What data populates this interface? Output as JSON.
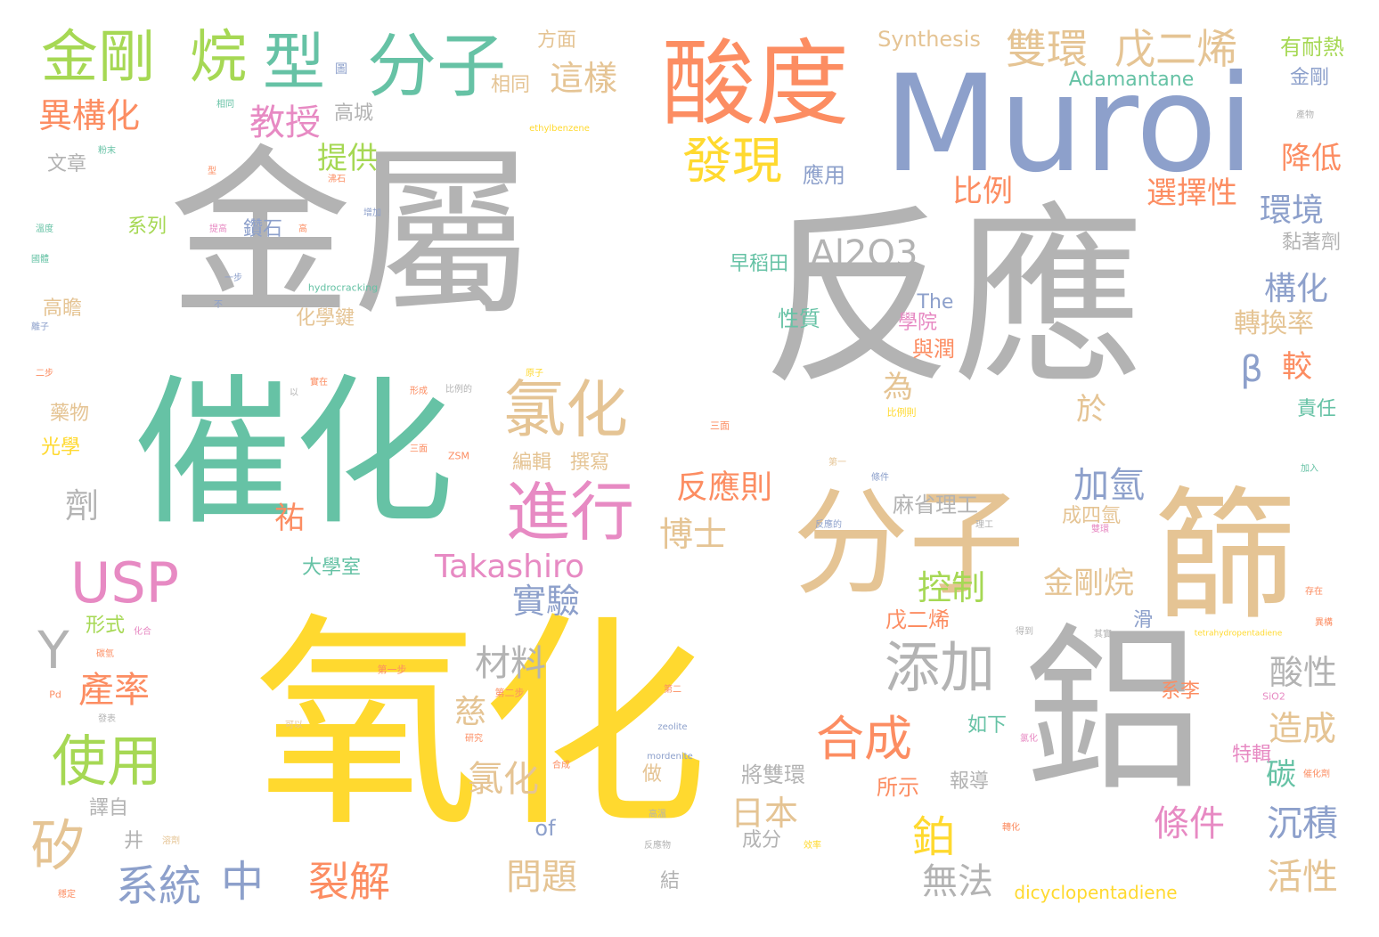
{
  "palette": {
    "gray": "#b3b3b3",
    "teal": "#66c2a5",
    "orange": "#fc8d62",
    "blue": "#8da0cb",
    "pink": "#e78ac3",
    "green": "#a6d854",
    "yellow": "#ffd92f",
    "tan": "#e5c494"
  },
  "words": [
    "金屬",
    "反應",
    "氧化",
    "鋁",
    "分子",
    "篩",
    "Muroi",
    "催化",
    "酸度",
    "金剛",
    "烷",
    "型",
    "分子",
    "雙環",
    "戊二烯",
    "發現",
    "氯化",
    "進行",
    "USP",
    "添加",
    "合成",
    "鉑",
    "Y",
    "使用",
    "矽",
    "β",
    "Al2O3",
    "Takashiro",
    "系統",
    "中",
    "裂解",
    "問題",
    "無法",
    "條件",
    "沉積",
    "活性",
    "異構化",
    "教授",
    "提供",
    "這樣",
    "相同",
    "方面",
    "Synthesis",
    "Adamantane",
    "有耐熱",
    "金剛",
    "降低",
    "環境",
    "選擇性",
    "比例",
    "構化",
    "轉換率",
    "較",
    "酸性",
    "造成",
    "碳",
    "責任",
    "應用",
    "早稻田",
    "性質",
    "學院",
    "與潤",
    "為",
    "於",
    "加氫",
    "麻省理工",
    "成四氫",
    "反應則",
    "博士",
    "祐",
    "劑",
    "控制",
    "金剛烷",
    "戊二烯",
    "實驗",
    "材料",
    "產率",
    "慈",
    "氯化",
    "做",
    "將雙環",
    "所示",
    "報導",
    "日本",
    "成分",
    "of",
    "dicyclopentadiene",
    "系李",
    "特輯",
    "如下",
    "大學室",
    "化學鍵",
    "形式",
    "藥物",
    "光學",
    "譯自",
    "井",
    "結",
    "系列",
    "鑽石",
    "文章",
    "高城",
    "高瞻",
    "編輯",
    "撰寫",
    "滑",
    "黏著劑",
    "The",
    "hydrocracking",
    "ethylbenzene",
    "ZSM",
    "zeolite",
    "mordenite",
    "tetrahydropentadiene",
    "SiO2",
    "Pd",
    "第一步",
    "第二步",
    "三面",
    "比例則"
  ],
  "small_words": [
    "圖",
    "相同",
    "粉末",
    "型",
    "增加",
    "沸石",
    "溫度",
    "提高",
    "高",
    "國體",
    "一步",
    "不",
    "離子",
    "原子",
    "實在",
    "形成",
    "比例的",
    "第一",
    "二步",
    "以",
    "三面",
    "反應的",
    "條件",
    "理工",
    "加入",
    "雙環",
    "存在",
    "異構",
    "其實",
    "可以",
    "合成",
    "第二",
    "氯化",
    "得到",
    "研究",
    "碳氫",
    "化合",
    "發表",
    "穩定",
    "溶劑",
    "高溫",
    "反應物",
    "效率",
    "轉化",
    "催化劑",
    "產物"
  ]
}
